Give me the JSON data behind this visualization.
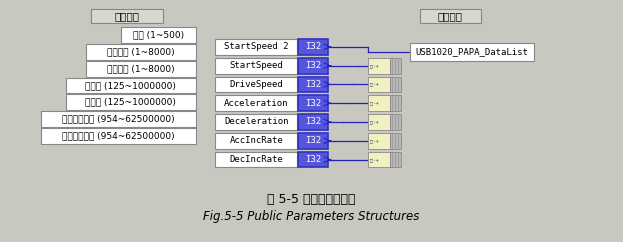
{
  "bg_color": "#c8c8c0",
  "fig_bg": "#c8c8c0",
  "title_zh": "图 5-5 公用参数结构体",
  "title_en": "Fig.5-5 Public Parameters Structures",
  "hw_label": "硬件参数",
  "pub_label": "公用参数",
  "hw_boxes": [
    "倍率 (1~500)",
    "初始速度 (1~8000)",
    "驱动速度 (1~8000)",
    "加速度 (125~1000000)",
    "减速度 (125~1000000)",
    "加速度变化率 (954~62500000)",
    "减速度变化率 (954~62500000)"
  ],
  "mid_labels": [
    "StartSpeed 2",
    "StartSpeed",
    "DriveSpeed",
    "Acceleration",
    "Deceleration",
    "AccIncRate",
    "DecIncRate"
  ],
  "i32_label": "I32",
  "usb_label": "USB1020_PAPA_DataList",
  "box_fill": "#ffffff",
  "box_edge": "#888888",
  "i32_fill": "#3333bb",
  "i32_fill2": "#5555dd",
  "i32_text": "#ffffff",
  "connector_fill": "#f0f0c0",
  "connector_edge": "#888888",
  "connector_bar_fill": "#b8b8b8",
  "line_color": "#2222bb",
  "text_color": "#000000",
  "label_box_fill": "#d8d8d0",
  "label_box_edge": "#888888",
  "n_conn": 6
}
